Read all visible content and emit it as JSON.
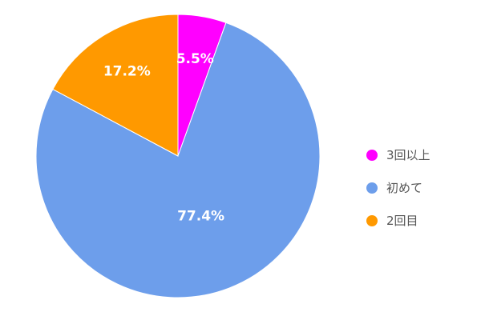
{
  "chart_data": {
    "type": "pie",
    "slices": [
      {
        "label": "3回以上",
        "value": 5.5,
        "display": "5.5%",
        "color": "#FF00FF"
      },
      {
        "label": "初めて",
        "value": 77.4,
        "display": "77.4%",
        "color": "#6D9EEB"
      },
      {
        "label": "2回目",
        "value": 17.2,
        "display": "17.2%",
        "color": "#FF9900"
      }
    ],
    "legend_position": "right",
    "start_angle_deg": 0,
    "direction": "clockwise"
  }
}
